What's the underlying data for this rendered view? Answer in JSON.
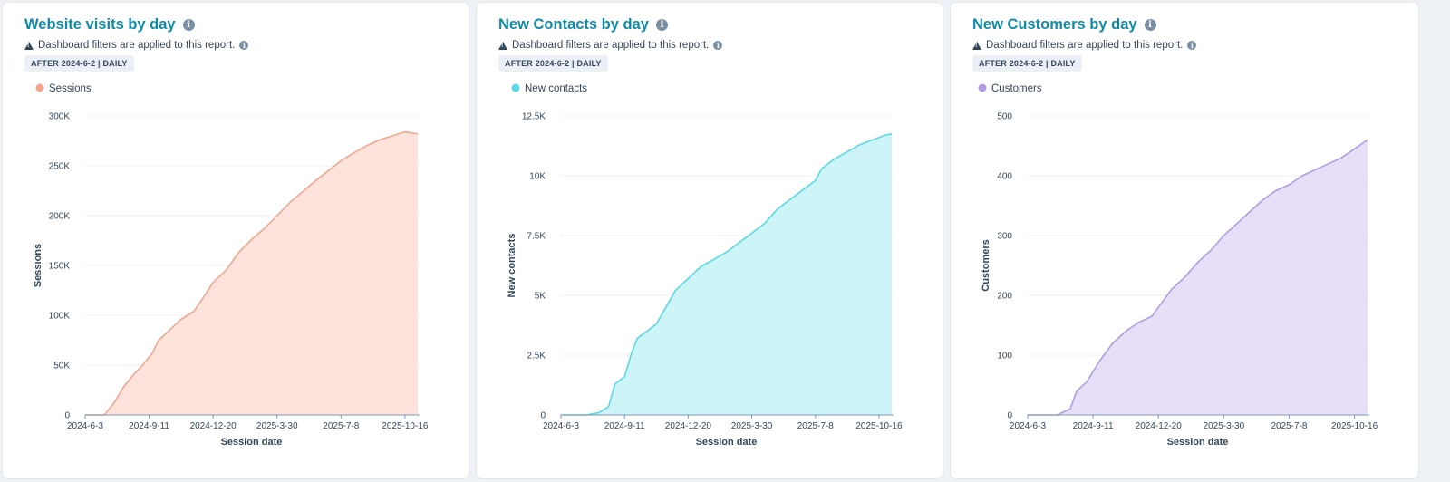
{
  "info_icon_glyph": "i",
  "cards": [
    {
      "title": "Website visits by day",
      "filter_notice": "Dashboard filters are applied to this report.",
      "filter_badge": "AFTER 2024-6-2 | DAILY"
    },
    {
      "title": "New Contacts by day",
      "filter_notice": "Dashboard filters are applied to this report.",
      "filter_badge": "AFTER 2024-6-2 | DAILY"
    },
    {
      "title": "New Customers by day",
      "filter_notice": "Dashboard filters are applied to this report.",
      "filter_badge": "AFTER 2024-6-2 | DAILY"
    }
  ],
  "chart_data": [
    {
      "type": "area",
      "title": "Website visits by day",
      "xlabel": "Session date",
      "ylabel": "Sessions",
      "x_tick_labels": [
        "2024-6-3",
        "2024-9-11",
        "2024-12-20",
        "2025-3-30",
        "2025-7-8",
        "2025-10-16"
      ],
      "y_tick_labels": [
        "0",
        "50K",
        "100K",
        "150K",
        "200K",
        "250K",
        "300K"
      ],
      "ylim": [
        0,
        300000
      ],
      "xlim": [
        "2024-6-3",
        "2025-11-5"
      ],
      "grid": true,
      "legend_position": "top-left",
      "color": "#f2a68e",
      "fill": "#fde3dc",
      "series": [
        {
          "name": "Sessions",
          "points": [
            [
              "2024-6-3",
              0
            ],
            [
              "2024-7-3",
              0
            ],
            [
              "2024-7-18",
              12000
            ],
            [
              "2024-8-2",
              28000
            ],
            [
              "2024-8-17",
              40000
            ],
            [
              "2024-9-1",
              50000
            ],
            [
              "2024-9-16",
              62000
            ],
            [
              "2024-9-26",
              75000
            ],
            [
              "2024-10-16",
              87000
            ],
            [
              "2024-10-31",
              96000
            ],
            [
              "2024-11-20",
              104000
            ],
            [
              "2024-12-5",
              118000
            ],
            [
              "2024-12-20",
              133000
            ],
            [
              "2025-1-9",
              145000
            ],
            [
              "2025-1-29",
              163000
            ],
            [
              "2025-2-18",
              176000
            ],
            [
              "2025-3-10",
              187000
            ],
            [
              "2025-3-30",
              200000
            ],
            [
              "2025-4-19",
              213000
            ],
            [
              "2025-5-9",
              224000
            ],
            [
              "2025-5-29",
              235000
            ],
            [
              "2025-6-18",
              245000
            ],
            [
              "2025-7-8",
              255000
            ],
            [
              "2025-7-28",
              263000
            ],
            [
              "2025-8-17",
              270000
            ],
            [
              "2025-9-6",
              276000
            ],
            [
              "2025-9-26",
              280000
            ],
            [
              "2025-10-16",
              284000
            ],
            [
              "2025-11-5",
              282000
            ]
          ]
        }
      ]
    },
    {
      "type": "area",
      "title": "New Contacts by day",
      "xlabel": "Session date",
      "ylabel": "New contacts",
      "x_tick_labels": [
        "2024-6-3",
        "2024-9-11",
        "2024-12-20",
        "2025-3-30",
        "2025-7-8",
        "2025-10-16"
      ],
      "y_tick_labels": [
        "0",
        "2.5K",
        "5K",
        "7.5K",
        "10K",
        "12.5K"
      ],
      "ylim": [
        0,
        12500
      ],
      "xlim": [
        "2024-6-3",
        "2025-11-5"
      ],
      "grid": true,
      "legend_position": "top-left",
      "color": "#5ad8e6",
      "fill": "#cdf4f7",
      "series": [
        {
          "name": "New contacts",
          "points": [
            [
              "2024-6-3",
              0
            ],
            [
              "2024-7-13",
              0
            ],
            [
              "2024-8-2",
              100
            ],
            [
              "2024-8-17",
              350
            ],
            [
              "2024-8-27",
              1300
            ],
            [
              "2024-9-11",
              1600
            ],
            [
              "2024-9-21",
              2500
            ],
            [
              "2024-10-1",
              3200
            ],
            [
              "2024-10-16",
              3500
            ],
            [
              "2024-10-31",
              3800
            ],
            [
              "2024-11-15",
              4500
            ],
            [
              "2024-11-30",
              5200
            ],
            [
              "2024-12-20",
              5700
            ],
            [
              "2025-1-9",
              6200
            ],
            [
              "2025-1-29",
              6500
            ],
            [
              "2025-2-18",
              6800
            ],
            [
              "2025-3-10",
              7200
            ],
            [
              "2025-3-30",
              7600
            ],
            [
              "2025-4-19",
              8000
            ],
            [
              "2025-5-9",
              8600
            ],
            [
              "2025-5-29",
              9000
            ],
            [
              "2025-6-18",
              9400
            ],
            [
              "2025-7-8",
              9800
            ],
            [
              "2025-7-18",
              10300
            ],
            [
              "2025-8-7",
              10700
            ],
            [
              "2025-8-27",
              11000
            ],
            [
              "2025-9-16",
              11300
            ],
            [
              "2025-10-6",
              11500
            ],
            [
              "2025-10-26",
              11700
            ],
            [
              "2025-11-5",
              11750
            ]
          ]
        }
      ]
    },
    {
      "type": "area",
      "title": "New Customers by day",
      "xlabel": "Session date",
      "ylabel": "Customers",
      "x_tick_labels": [
        "2024-6-3",
        "2024-9-11",
        "2024-12-20",
        "2025-3-30",
        "2025-7-8",
        "2025-10-16"
      ],
      "y_tick_labels": [
        "0",
        "100",
        "200",
        "300",
        "400",
        "500"
      ],
      "ylim": [
        0,
        500
      ],
      "xlim": [
        "2024-6-3",
        "2025-11-5"
      ],
      "grid": true,
      "legend_position": "top-left",
      "color": "#b09ee0",
      "fill": "#e6dff7",
      "series": [
        {
          "name": "Customers",
          "points": [
            [
              "2024-6-3",
              0
            ],
            [
              "2024-7-18",
              0
            ],
            [
              "2024-8-7",
              10
            ],
            [
              "2024-8-17",
              40
            ],
            [
              "2024-9-1",
              55
            ],
            [
              "2024-9-21",
              90
            ],
            [
              "2024-10-11",
              120
            ],
            [
              "2024-10-31",
              140
            ],
            [
              "2024-11-20",
              155
            ],
            [
              "2024-12-10",
              165
            ],
            [
              "2024-12-20",
              180
            ],
            [
              "2025-1-9",
              210
            ],
            [
              "2025-1-29",
              230
            ],
            [
              "2025-2-18",
              255
            ],
            [
              "2025-3-10",
              275
            ],
            [
              "2025-3-30",
              300
            ],
            [
              "2025-4-19",
              320
            ],
            [
              "2025-5-9",
              340
            ],
            [
              "2025-5-29",
              360
            ],
            [
              "2025-6-18",
              375
            ],
            [
              "2025-7-8",
              385
            ],
            [
              "2025-7-28",
              400
            ],
            [
              "2025-8-17",
              410
            ],
            [
              "2025-9-6",
              420
            ],
            [
              "2025-9-26",
              430
            ],
            [
              "2025-10-16",
              445
            ],
            [
              "2025-11-5",
              460
            ]
          ]
        }
      ]
    }
  ]
}
